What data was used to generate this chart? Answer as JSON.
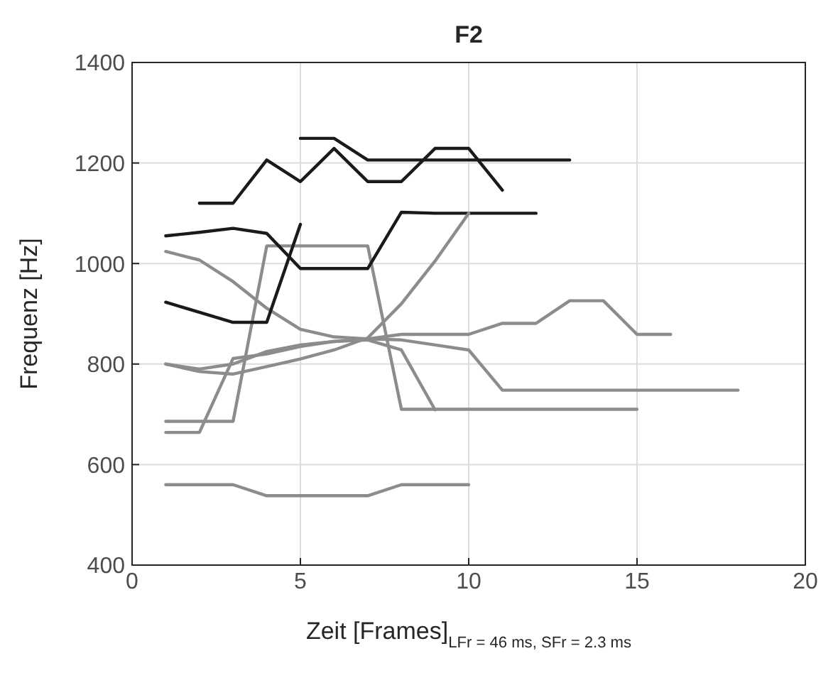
{
  "chart_data": {
    "type": "line",
    "title": "F2",
    "xlabel": "Zeit [Frames]$_{LFr = 46 ms, SFr = 2.3 ms}$",
    "ylabel": "Frequenz [Hz]",
    "xlim": [
      0,
      20
    ],
    "xticks": [
      0,
      5,
      10,
      15,
      20
    ],
    "ylim": [
      400,
      1400
    ],
    "yticks": [
      400,
      600,
      800,
      1000,
      1200,
      1400
    ],
    "grid": true,
    "marker": "none",
    "line_style": "solid",
    "series": [
      {
        "color": "#8c8c8c",
        "x": [
          1,
          2,
          3,
          4,
          5,
          6,
          7,
          8,
          9,
          10,
          11,
          12,
          13,
          14,
          15,
          16
        ],
        "values": [
          1024,
          1007,
          964,
          911,
          869,
          854,
          850,
          859,
          859,
          859,
          881,
          881,
          926,
          926,
          859,
          859
        ]
      },
      {
        "color": "#8c8c8c",
        "x": [
          1,
          2,
          3,
          4,
          5,
          6,
          7,
          8,
          9,
          10,
          11,
          12,
          13,
          14,
          15
        ],
        "values": [
          686,
          686,
          686,
          1035,
          1035,
          1035,
          1035,
          710,
          710,
          710,
          710,
          710,
          710,
          710,
          710
        ]
      },
      {
        "color": "#8c8c8c",
        "x": [
          1,
          2,
          3,
          4,
          5,
          6,
          7,
          8,
          9,
          10,
          11,
          12,
          13,
          14,
          15,
          16,
          17,
          18
        ],
        "values": [
          664,
          664,
          811,
          820,
          835,
          845,
          850,
          848,
          838,
          828,
          748,
          748,
          748,
          748,
          748,
          748,
          748,
          748
        ]
      },
      {
        "color": "#8c8c8c",
        "x": [
          1,
          2,
          3,
          4,
          5,
          6,
          7,
          8,
          9
        ],
        "values": [
          800,
          790,
          800,
          825,
          838,
          845,
          848,
          828,
          709
        ]
      },
      {
        "color": "#8c8c8c",
        "x": [
          1,
          2,
          3,
          4,
          5,
          6,
          7,
          8,
          9,
          10
        ],
        "values": [
          560,
          560,
          560,
          538,
          538,
          538,
          538,
          560,
          560,
          560
        ]
      },
      {
        "color": "#1a1a1a",
        "x": [
          2,
          3,
          4,
          5,
          6,
          7,
          8,
          9,
          10,
          11
        ],
        "values": [
          1120,
          1120,
          1206,
          1163,
          1229,
          1163,
          1163,
          1229,
          1229,
          1146
        ]
      },
      {
        "color": "#1a1a1a",
        "x": [
          5,
          6,
          7,
          8,
          9,
          10,
          11,
          12,
          13
        ],
        "values": [
          1249,
          1249,
          1206,
          1206,
          1206,
          1206,
          1206,
          1206,
          1206
        ]
      },
      {
        "color": "#1a1a1a",
        "x": [
          1,
          2,
          3,
          4,
          5,
          6,
          7,
          8,
          9,
          10,
          11,
          12
        ],
        "values": [
          1055,
          1062,
          1070,
          1060,
          990,
          990,
          990,
          1102,
          1100,
          1100,
          1100,
          1100
        ]
      },
      {
        "color": "#1a1a1a",
        "x": [
          1,
          2,
          3,
          4,
          5
        ],
        "values": [
          923,
          903,
          883,
          883,
          1078
        ]
      },
      {
        "color": "#8c8c8c",
        "x": [
          1,
          2,
          3,
          4,
          5,
          6,
          7,
          8,
          9,
          10
        ],
        "values": [
          800,
          785,
          780,
          795,
          810,
          828,
          852,
          920,
          1005,
          1100
        ]
      }
    ]
  }
}
